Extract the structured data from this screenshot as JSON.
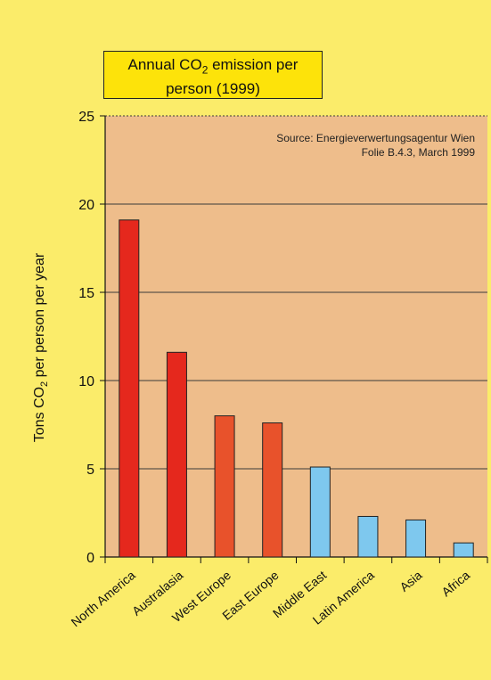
{
  "title": {
    "line1_prefix": "Annual CO",
    "line1_sub": "2",
    "line1_suffix": " emission per",
    "line2": "person (1999)"
  },
  "source": {
    "line1": "Source: Energieverwertungsagentur Wien",
    "line2": "Folie B.4.3, March 1999"
  },
  "ylabel": {
    "prefix": "Tons CO",
    "sub": "2",
    "suffix": " per person per year"
  },
  "colors": {
    "background": "#fbec6a",
    "plot_area": "#eebd8b",
    "high_emission": "#e5281d",
    "mid_emission": "#e8522b",
    "low_emission": "#7ec8ee"
  },
  "chart_data": {
    "type": "bar",
    "categories": [
      "North America",
      "Australasia",
      "West Europe",
      "East Europe",
      "Middle East",
      "Latin America",
      "Asia",
      "Africa"
    ],
    "values": [
      19.1,
      11.6,
      8.0,
      7.6,
      5.1,
      2.3,
      2.1,
      0.8
    ],
    "bar_colors": [
      "#e5281d",
      "#e5281d",
      "#e8522b",
      "#e8522b",
      "#7ec8ee",
      "#7ec8ee",
      "#7ec8ee",
      "#7ec8ee"
    ],
    "ylim": [
      0,
      25
    ],
    "yticks": [
      0,
      5,
      10,
      15,
      20,
      25
    ],
    "grid": true,
    "title": "Annual CO2 emission per person (1999)",
    "ylabel": "Tons CO2 per person per year",
    "xlabel": ""
  }
}
